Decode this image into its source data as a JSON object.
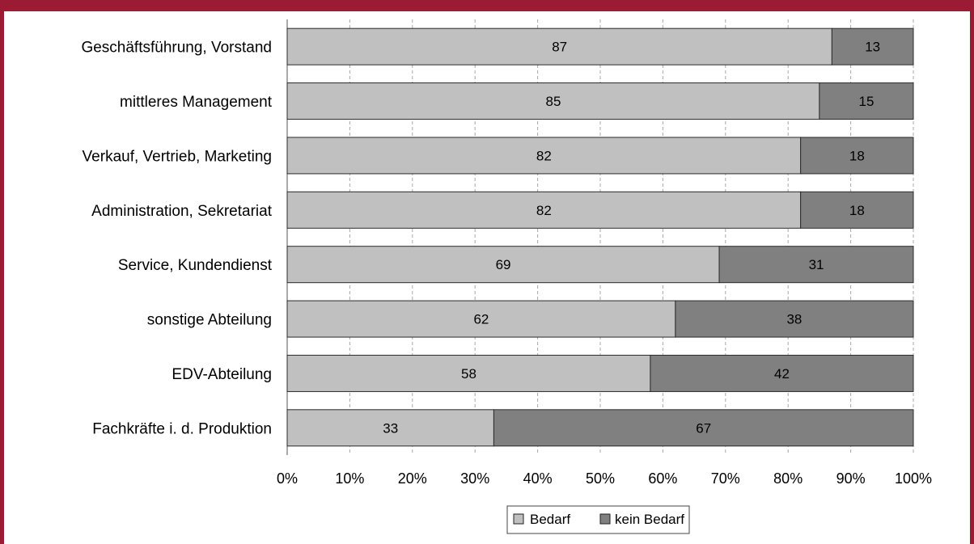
{
  "chart_data": {
    "type": "bar",
    "orientation": "horizontal",
    "stacked": true,
    "percent": true,
    "categories": [
      "Geschäftsführung, Vorstand",
      "mittleres Management",
      "Verkauf, Vertrieb, Marketing",
      "Administration, Sekretariat",
      "Service, Kundendienst",
      "sonstige Abteilung",
      "EDV-Abteilung",
      "Fachkräfte i. d. Produktion"
    ],
    "series": [
      {
        "name": "Bedarf",
        "values": [
          87,
          85,
          82,
          82,
          69,
          62,
          58,
          33
        ],
        "color": "#c0c0c0"
      },
      {
        "name": "kein Bedarf",
        "values": [
          13,
          15,
          18,
          18,
          31,
          38,
          42,
          67
        ],
        "color": "#808080"
      }
    ],
    "xlim": [
      0,
      100
    ],
    "x_ticks": [
      "0%",
      "10%",
      "20%",
      "30%",
      "40%",
      "50%",
      "60%",
      "70%",
      "80%",
      "90%",
      "100%"
    ],
    "grid": true,
    "legend_position": "bottom"
  },
  "colors": {
    "frame": "#9b1b34",
    "grid": "#a8a8a8",
    "bar_outline": "#2a2a2a"
  }
}
